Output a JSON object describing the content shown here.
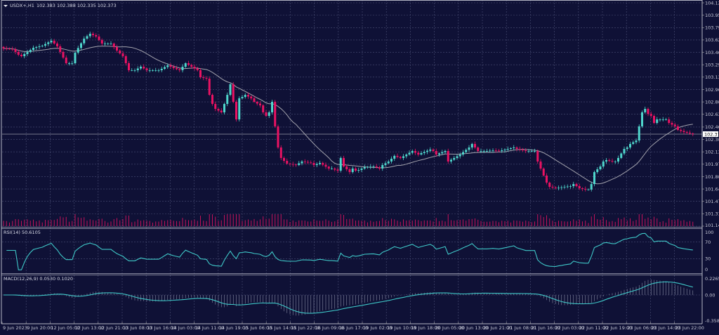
{
  "header": {
    "symbol": "USDX+,H1",
    "ohlc": "102.383 102.388 102.335 102.373"
  },
  "colors": {
    "background": "#0f1136",
    "grid": "#4b4f76",
    "bull": "#4fd6cc",
    "bear": "#ea1262",
    "moving_average": "#a3a3ad",
    "volume": "#c4125a",
    "rsi_line": "#3fc8c8",
    "macd_line": "#3fc8c8",
    "macd_histogram": "#8a8ea6"
  },
  "chart_data": [
    {
      "type": "candlestick",
      "title": "USDX+,H1",
      "current_price": "102.373",
      "ylim": [
        101.145,
        104.12
      ],
      "y_ticks": [
        "104.120",
        "103.955",
        "103.790",
        "103.625",
        "103.460",
        "103.295",
        "103.130",
        "102.965",
        "102.800",
        "102.635",
        "102.465",
        "102.300",
        "102.135",
        "101.970",
        "101.805",
        "101.640",
        "101.475",
        "101.310",
        "101.145"
      ],
      "x_ticks": [
        "9 Jun 2023",
        "9 Jun 20:00",
        "12 Jun 05:00",
        "12 Jun 13:00",
        "12 Jun 21:00",
        "13 Jun 08:00",
        "13 Jun 16:00",
        "14 Jun 03:00",
        "14 Jun 11:00",
        "14 Jun 19:00",
        "15 Jun 06:00",
        "15 Jun 14:00",
        "15 Jun 22:00",
        "16 Jun 09:00",
        "16 Jun 17:00",
        "19 Jun 02:00",
        "19 Jun 10:00",
        "19 Jun 18:00",
        "20 Jun 05:00",
        "20 Jun 13:00",
        "20 Jun 21:00",
        "21 Jun 08:00",
        "21 Jun 16:00",
        "22 Jun 03:00",
        "22 Jun 11:00",
        "22 Jun 19:00",
        "23 Jun 06:00",
        "23 Jun 14:00",
        "23 Jun 22:00"
      ],
      "bars": 232,
      "close_keypoints": [
        [
          0,
          103.512
        ],
        [
          3,
          103.503
        ],
        [
          5,
          103.428
        ],
        [
          6,
          103.409
        ],
        [
          10,
          103.521
        ],
        [
          13,
          103.549
        ],
        [
          16,
          103.615
        ],
        [
          18,
          103.54
        ],
        [
          21,
          103.315
        ],
        [
          23,
          103.315
        ],
        [
          24,
          103.456
        ],
        [
          27,
          103.643
        ],
        [
          29,
          103.708
        ],
        [
          31,
          103.671
        ],
        [
          33,
          103.577
        ],
        [
          36,
          103.577
        ],
        [
          38,
          103.484
        ],
        [
          40,
          103.409
        ],
        [
          42,
          103.222
        ],
        [
          44,
          103.222
        ],
        [
          46,
          103.269
        ],
        [
          48,
          103.222
        ],
        [
          52,
          103.222
        ],
        [
          53,
          103.241
        ],
        [
          55,
          103.287
        ],
        [
          57,
          103.25
        ],
        [
          59,
          103.222
        ],
        [
          61,
          103.315
        ],
        [
          63,
          103.269
        ],
        [
          65,
          103.222
        ],
        [
          66,
          103.128
        ],
        [
          68,
          103.11
        ],
        [
          69,
          102.894
        ],
        [
          70,
          102.773
        ],
        [
          71,
          102.707
        ],
        [
          73,
          102.661
        ],
        [
          74,
          102.773
        ],
        [
          75,
          102.894
        ],
        [
          76,
          103.035
        ],
        [
          78,
          102.567
        ],
        [
          79,
          102.848
        ],
        [
          80,
          102.866
        ],
        [
          81,
          102.894
        ],
        [
          83,
          102.848
        ],
        [
          84,
          102.801
        ],
        [
          86,
          102.754
        ],
        [
          87,
          102.661
        ],
        [
          88,
          102.614
        ],
        [
          89,
          102.661
        ],
        [
          90,
          102.801
        ],
        [
          91,
          102.474
        ],
        [
          92,
          102.193
        ],
        [
          93,
          102.053
        ],
        [
          95,
          101.977
        ],
        [
          98,
          101.959
        ],
        [
          100,
          102.006
        ],
        [
          103,
          101.987
        ],
        [
          104,
          101.959
        ],
        [
          106,
          101.987
        ],
        [
          109,
          101.912
        ],
        [
          110,
          101.912
        ],
        [
          112,
          101.884
        ],
        [
          113,
          102.053
        ],
        [
          114,
          101.94
        ],
        [
          116,
          101.865
        ],
        [
          117,
          101.912
        ],
        [
          118,
          101.884
        ],
        [
          119,
          101.893
        ],
        [
          120,
          101.912
        ],
        [
          121,
          101.931
        ],
        [
          124,
          101.94
        ],
        [
          126,
          101.912
        ],
        [
          127,
          101.959
        ],
        [
          129,
          102.006
        ],
        [
          131,
          102.081
        ],
        [
          133,
          102.053
        ],
        [
          135,
          102.099
        ],
        [
          137,
          102.146
        ],
        [
          139,
          102.099
        ],
        [
          140,
          102.118
        ],
        [
          143,
          102.165
        ],
        [
          144,
          102.146
        ],
        [
          145,
          102.099
        ],
        [
          148,
          102.146
        ],
        [
          149,
          102.006
        ],
        [
          151,
          102.053
        ],
        [
          153,
          102.099
        ],
        [
          156,
          102.193
        ],
        [
          157,
          102.24
        ],
        [
          159,
          102.146
        ],
        [
          162,
          102.146
        ],
        [
          164,
          102.155
        ],
        [
          166,
          102.146
        ],
        [
          169,
          102.174
        ],
        [
          171,
          102.193
        ],
        [
          172,
          102.174
        ],
        [
          175,
          102.146
        ],
        [
          178,
          102.146
        ],
        [
          179,
          102.006
        ],
        [
          180,
          101.912
        ],
        [
          182,
          101.725
        ],
        [
          183,
          101.669
        ],
        [
          185,
          101.65
        ],
        [
          188,
          101.669
        ],
        [
          190,
          101.678
        ],
        [
          191,
          101.706
        ],
        [
          193,
          101.65
        ],
        [
          195,
          101.632
        ],
        [
          196,
          101.632
        ],
        [
          197,
          101.706
        ],
        [
          198,
          101.865
        ],
        [
          200,
          101.94
        ],
        [
          201,
          102.006
        ],
        [
          202,
          102.024
        ],
        [
          204,
          102.006
        ],
        [
          205,
          102.006
        ],
        [
          206,
          102.053
        ],
        [
          208,
          102.174
        ],
        [
          209,
          102.193
        ],
        [
          210,
          102.24
        ],
        [
          212,
          102.286
        ],
        [
          213,
          102.474
        ],
        [
          214,
          102.661
        ],
        [
          215,
          102.707
        ],
        [
          216,
          102.64
        ],
        [
          217,
          102.614
        ],
        [
          218,
          102.52
        ],
        [
          219,
          102.567
        ],
        [
          222,
          102.567
        ],
        [
          223,
          102.52
        ],
        [
          225,
          102.474
        ],
        [
          226,
          102.427
        ],
        [
          228,
          102.399
        ],
        [
          230,
          102.38
        ],
        [
          231,
          102.373
        ]
      ]
    },
    {
      "type": "line",
      "title": "RSI(14) 50.6105",
      "ylim": [
        0,
        100
      ],
      "y_ticks": [
        "100",
        "70",
        "30",
        "0"
      ]
    },
    {
      "type": "line+bar",
      "title": "MACD(12,26,9) 0.0530 0.1020",
      "ylim": [
        -0.3585,
        0.2265
      ],
      "y_ticks": [
        "0.2265",
        "0.00",
        "-0.3585"
      ]
    }
  ]
}
